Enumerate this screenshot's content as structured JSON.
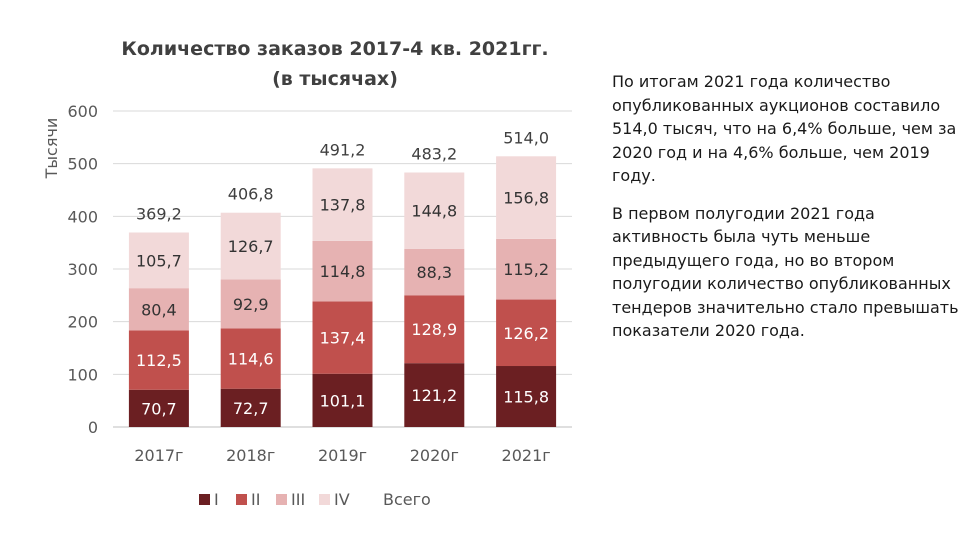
{
  "chart_data": {
    "type": "bar",
    "stacked": true,
    "title_line1": "Количество заказов 2017-4 кв. 2021гг.",
    "title_line2": "(в тысячах)",
    "ylabel": "Тысячи",
    "xlabel": "",
    "ylim": [
      0,
      600
    ],
    "yticks": [
      0,
      100,
      200,
      300,
      400,
      500,
      600
    ],
    "grid": true,
    "legend_position": "bottom",
    "categories": [
      "2017г",
      "2018г",
      "2019г",
      "2020г",
      "2021г"
    ],
    "series": [
      {
        "name": "I",
        "color": "#6b1f22",
        "label_color": "#ffffff",
        "values": [
          70.7,
          72.7,
          101.1,
          121.2,
          115.8
        ],
        "labels": [
          "70,7",
          "72,7",
          "101,1",
          "121,2",
          "115,8"
        ]
      },
      {
        "name": "II",
        "color": "#c0504d",
        "label_color": "#ffffff",
        "values": [
          112.5,
          114.6,
          137.4,
          128.9,
          126.2
        ],
        "labels": [
          "112,5",
          "114,6",
          "137,4",
          "128,9",
          "126,2"
        ]
      },
      {
        "name": "III",
        "color": "#e6b2b2",
        "label_color": "#333333",
        "values": [
          80.4,
          92.9,
          114.8,
          88.3,
          115.2
        ],
        "labels": [
          "80,4",
          "92,9",
          "114,8",
          "88,3",
          "115,2"
        ]
      },
      {
        "name": "IV",
        "color": "#f2d9d9",
        "label_color": "#333333",
        "values": [
          105.7,
          126.7,
          137.8,
          144.8,
          156.8
        ],
        "labels": [
          "105,7",
          "126,7",
          "137,8",
          "144,8",
          "156,8"
        ]
      }
    ],
    "totals": {
      "name": "Всего",
      "values": [
        369.2,
        406.8,
        491.2,
        483.2,
        514.0
      ],
      "labels": [
        "369,2",
        "406,8",
        "491,2",
        "483,2",
        "514,0"
      ]
    }
  },
  "text_panel": {
    "paragraph1": "По итогам 2021 года количество опубликованных аукционов составило 514,0 тысяч, что на 6,4% больше, чем за 2020 год и на 4,6% больше, чем 2019 году.",
    "paragraph2": "В первом полугодии 2021 года активность была чуть меньше предыдущего года, но во втором полугодии количество опубликованных тендеров значительно стало превышать показатели 2020 года."
  }
}
